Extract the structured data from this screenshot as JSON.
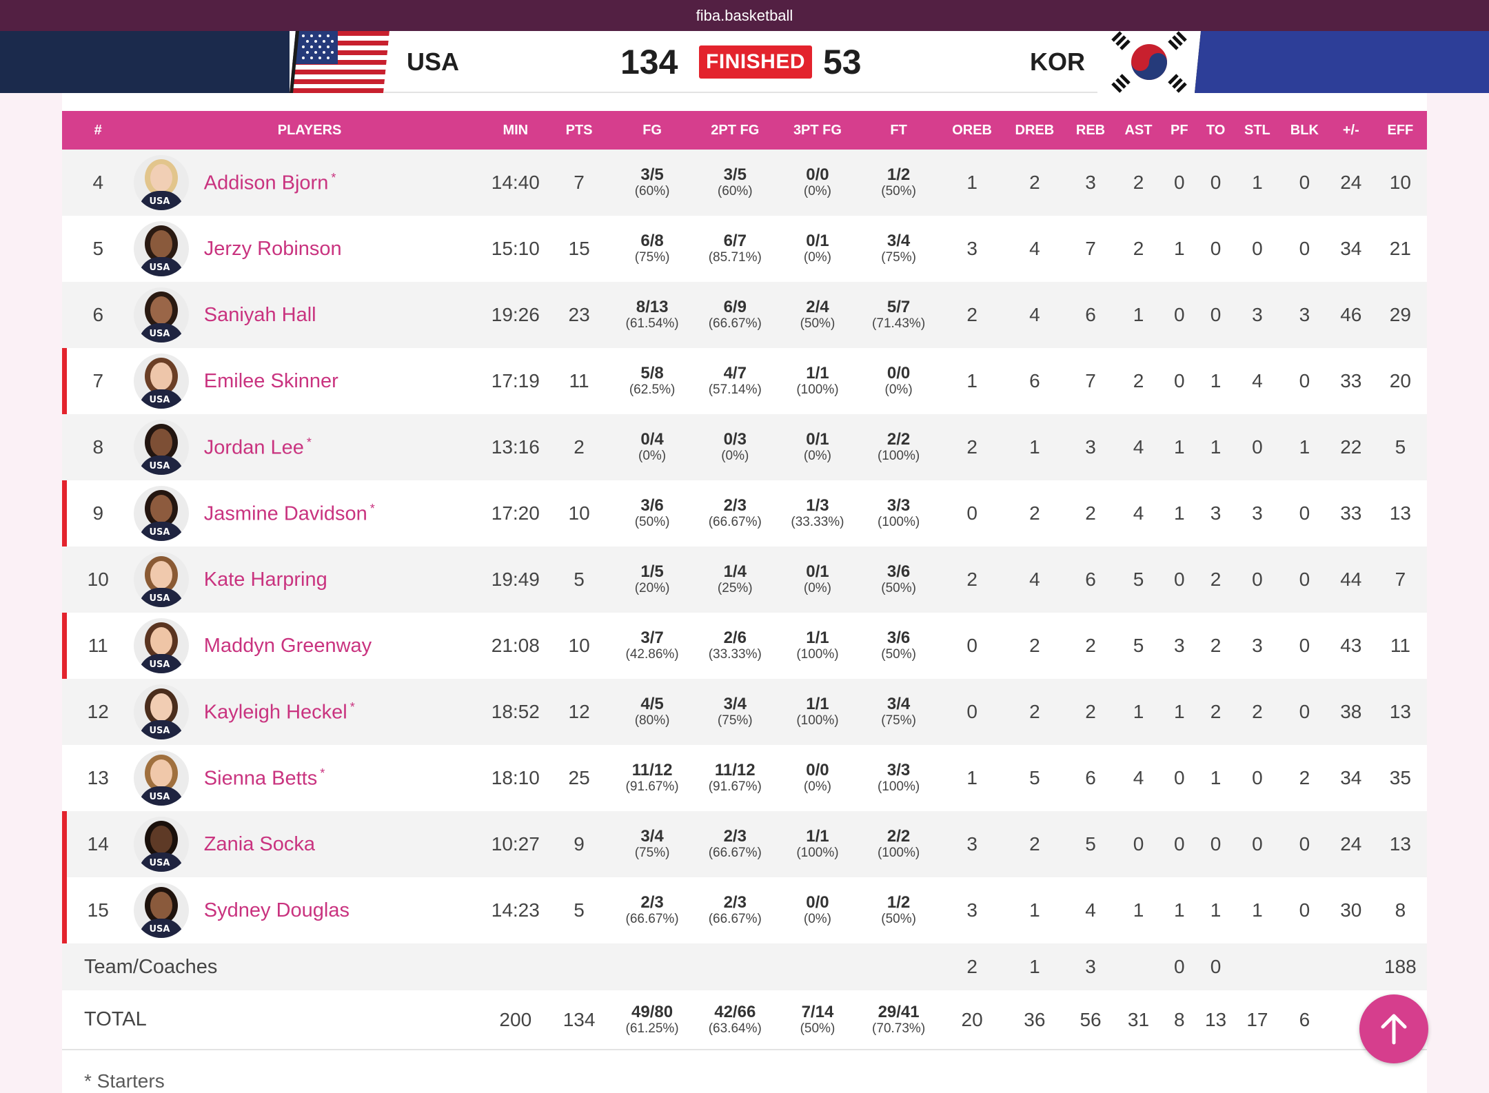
{
  "browser": {
    "url": "fiba.basketball"
  },
  "game": {
    "home_team": "USA",
    "away_team": "KOR",
    "home_score": "134",
    "away_score": "53",
    "status": "FINISHED"
  },
  "table": {
    "headers": [
      "#",
      "PLAYERS",
      "MIN",
      "PTS",
      "FG",
      "2PT FG",
      "3PT FG",
      "FT",
      "OREB",
      "DREB",
      "REB",
      "AST",
      "PF",
      "TO",
      "STL",
      "BLK",
      "+/-",
      "EFF"
    ],
    "starter_mark": "*",
    "players": [
      {
        "no": "4",
        "name": "Addison Bjorn",
        "starter": true,
        "bench_marker": false,
        "min": "14:40",
        "pts": "7",
        "fg": "3/5",
        "fg_pct": "(60%)",
        "fg2": "3/5",
        "fg2_pct": "(60%)",
        "fg3": "0/0",
        "fg3_pct": "(0%)",
        "ft": "1/2",
        "ft_pct": "(50%)",
        "oreb": "1",
        "dreb": "2",
        "reb": "3",
        "ast": "2",
        "pf": "0",
        "to": "0",
        "stl": "1",
        "blk": "0",
        "pm": "24",
        "eff": "10",
        "skin": "#f1cfb5",
        "hair": "#e2c58c"
      },
      {
        "no": "5",
        "name": "Jerzy Robinson",
        "starter": false,
        "bench_marker": false,
        "min": "15:10",
        "pts": "15",
        "fg": "6/8",
        "fg_pct": "(75%)",
        "fg2": "6/7",
        "fg2_pct": "(85.71%)",
        "fg3": "0/1",
        "fg3_pct": "(0%)",
        "ft": "3/4",
        "ft_pct": "(75%)",
        "oreb": "3",
        "dreb": "4",
        "reb": "7",
        "ast": "2",
        "pf": "1",
        "to": "0",
        "stl": "0",
        "blk": "0",
        "pm": "34",
        "eff": "21",
        "skin": "#8a5a3c",
        "hair": "#2a1a12"
      },
      {
        "no": "6",
        "name": "Saniyah Hall",
        "starter": false,
        "bench_marker": false,
        "min": "19:26",
        "pts": "23",
        "fg": "8/13",
        "fg_pct": "(61.54%)",
        "fg2": "6/9",
        "fg2_pct": "(66.67%)",
        "fg3": "2/4",
        "fg3_pct": "(50%)",
        "ft": "5/7",
        "ft_pct": "(71.43%)",
        "oreb": "2",
        "dreb": "4",
        "reb": "6",
        "ast": "1",
        "pf": "0",
        "to": "0",
        "stl": "3",
        "blk": "3",
        "pm": "46",
        "eff": "29",
        "skin": "#9a6648",
        "hair": "#2a1a12"
      },
      {
        "no": "7",
        "name": "Emilee Skinner",
        "starter": false,
        "bench_marker": true,
        "min": "17:19",
        "pts": "11",
        "fg": "5/8",
        "fg_pct": "(62.5%)",
        "fg2": "4/7",
        "fg2_pct": "(57.14%)",
        "fg3": "1/1",
        "fg3_pct": "(100%)",
        "ft": "0/0",
        "ft_pct": "(0%)",
        "oreb": "1",
        "dreb": "6",
        "reb": "7",
        "ast": "2",
        "pf": "0",
        "to": "1",
        "stl": "4",
        "blk": "0",
        "pm": "33",
        "eff": "20",
        "skin": "#eec6aa",
        "hair": "#6b3f26"
      },
      {
        "no": "8",
        "name": "Jordan Lee",
        "starter": true,
        "bench_marker": false,
        "min": "13:16",
        "pts": "2",
        "fg": "0/4",
        "fg_pct": "(0%)",
        "fg2": "0/3",
        "fg2_pct": "(0%)",
        "fg3": "0/1",
        "fg3_pct": "(0%)",
        "ft": "2/2",
        "ft_pct": "(100%)",
        "oreb": "2",
        "dreb": "1",
        "reb": "3",
        "ast": "4",
        "pf": "1",
        "to": "1",
        "stl": "0",
        "blk": "1",
        "pm": "22",
        "eff": "5",
        "skin": "#7d4f35",
        "hair": "#221510"
      },
      {
        "no": "9",
        "name": "Jasmine Davidson",
        "starter": true,
        "bench_marker": true,
        "min": "17:20",
        "pts": "10",
        "fg": "3/6",
        "fg_pct": "(50%)",
        "fg2": "2/3",
        "fg2_pct": "(66.67%)",
        "fg3": "1/3",
        "fg3_pct": "(33.33%)",
        "ft": "3/3",
        "ft_pct": "(100%)",
        "oreb": "0",
        "dreb": "2",
        "reb": "2",
        "ast": "4",
        "pf": "1",
        "to": "3",
        "stl": "3",
        "blk": "0",
        "pm": "33",
        "eff": "13",
        "skin": "#8d5b3e",
        "hair": "#241610"
      },
      {
        "no": "10",
        "name": "Kate Harpring",
        "starter": false,
        "bench_marker": false,
        "min": "19:49",
        "pts": "5",
        "fg": "1/5",
        "fg_pct": "(20%)",
        "fg2": "1/4",
        "fg2_pct": "(25%)",
        "fg3": "0/1",
        "fg3_pct": "(0%)",
        "ft": "3/6",
        "ft_pct": "(50%)",
        "oreb": "2",
        "dreb": "4",
        "reb": "6",
        "ast": "5",
        "pf": "0",
        "to": "2",
        "stl": "0",
        "blk": "0",
        "pm": "44",
        "eff": "7",
        "skin": "#f0c9ad",
        "hair": "#8a5a34"
      },
      {
        "no": "11",
        "name": "Maddyn Greenway",
        "starter": false,
        "bench_marker": true,
        "min": "21:08",
        "pts": "10",
        "fg": "3/7",
        "fg_pct": "(42.86%)",
        "fg2": "2/6",
        "fg2_pct": "(33.33%)",
        "fg3": "1/1",
        "fg3_pct": "(100%)",
        "ft": "3/6",
        "ft_pct": "(50%)",
        "oreb": "0",
        "dreb": "2",
        "reb": "2",
        "ast": "5",
        "pf": "3",
        "to": "2",
        "stl": "3",
        "blk": "0",
        "pm": "43",
        "eff": "11",
        "skin": "#efc5a6",
        "hair": "#5a3420"
      },
      {
        "no": "12",
        "name": "Kayleigh Heckel",
        "starter": true,
        "bench_marker": false,
        "min": "18:52",
        "pts": "12",
        "fg": "4/5",
        "fg_pct": "(80%)",
        "fg2": "3/4",
        "fg2_pct": "(75%)",
        "fg3": "1/1",
        "fg3_pct": "(100%)",
        "ft": "3/4",
        "ft_pct": "(75%)",
        "oreb": "0",
        "dreb": "2",
        "reb": "2",
        "ast": "1",
        "pf": "1",
        "to": "2",
        "stl": "2",
        "blk": "0",
        "pm": "38",
        "eff": "13",
        "skin": "#f1cdb3",
        "hair": "#4a2d1c"
      },
      {
        "no": "13",
        "name": "Sienna Betts",
        "starter": true,
        "bench_marker": false,
        "min": "18:10",
        "pts": "25",
        "fg": "11/12",
        "fg_pct": "(91.67%)",
        "fg2": "11/12",
        "fg2_pct": "(91.67%)",
        "fg3": "0/0",
        "fg3_pct": "(0%)",
        "ft": "3/3",
        "ft_pct": "(100%)",
        "oreb": "1",
        "dreb": "5",
        "reb": "6",
        "ast": "4",
        "pf": "0",
        "to": "1",
        "stl": "0",
        "blk": "2",
        "pm": "34",
        "eff": "35",
        "skin": "#f0c8aa",
        "hair": "#a0703e"
      },
      {
        "no": "14",
        "name": "Zania Socka",
        "starter": false,
        "bench_marker": true,
        "min": "10:27",
        "pts": "9",
        "fg": "3/4",
        "fg_pct": "(75%)",
        "fg2": "2/3",
        "fg2_pct": "(66.67%)",
        "fg3": "1/1",
        "fg3_pct": "(100%)",
        "ft": "2/2",
        "ft_pct": "(100%)",
        "oreb": "3",
        "dreb": "2",
        "reb": "5",
        "ast": "0",
        "pf": "0",
        "to": "0",
        "stl": "0",
        "blk": "0",
        "pm": "24",
        "eff": "13",
        "skin": "#5e3a26",
        "hair": "#1a100b"
      },
      {
        "no": "15",
        "name": "Sydney Douglas",
        "starter": false,
        "bench_marker": true,
        "min": "14:23",
        "pts": "5",
        "fg": "2/3",
        "fg_pct": "(66.67%)",
        "fg2": "2/3",
        "fg2_pct": "(66.67%)",
        "fg3": "0/0",
        "fg3_pct": "(0%)",
        "ft": "1/2",
        "ft_pct": "(50%)",
        "oreb": "3",
        "dreb": "1",
        "reb": "4",
        "ast": "1",
        "pf": "1",
        "to": "1",
        "stl": "1",
        "blk": "0",
        "pm": "30",
        "eff": "8",
        "skin": "#8a5a3c",
        "hair": "#1f130d"
      }
    ],
    "team_row": {
      "label": "Team/Coaches",
      "oreb": "2",
      "dreb": "1",
      "reb": "3",
      "pf": "0",
      "to": "0",
      "eff": "188"
    },
    "total_row": {
      "label": "TOTAL",
      "min": "200",
      "pts": "134",
      "fg": "49/80",
      "fg_pct": "(61.25%)",
      "fg2": "42/66",
      "fg2_pct": "(63.64%)",
      "fg3": "7/14",
      "fg3_pct": "(50%)",
      "ft": "29/41",
      "ft_pct": "(70.73%)",
      "oreb": "20",
      "dreb": "36",
      "reb": "56",
      "ast": "31",
      "pf": "8",
      "to": "13",
      "stl": "17",
      "blk": "6"
    }
  },
  "footnote": "* Starters",
  "jersey_text": "USA",
  "colors": {
    "accent": "#d63e8d",
    "bench_marker": "#e3232d",
    "status_badge": "#e3232d",
    "url_bar": "#532043"
  },
  "scroll_top_icon": "arrow-up-icon"
}
